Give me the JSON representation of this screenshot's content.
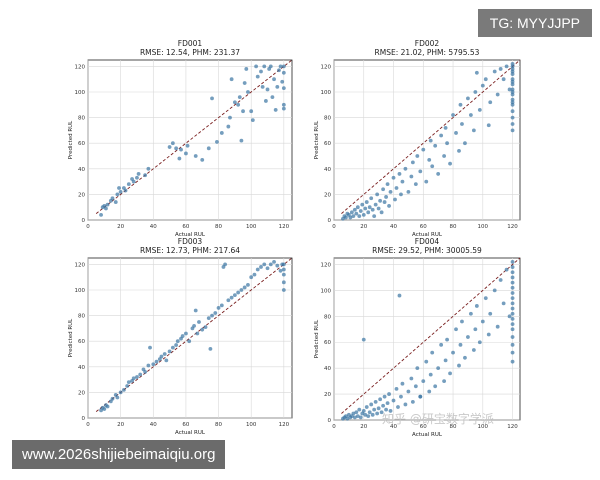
{
  "watermarks": {
    "top_right": "TG: MYYJJPP",
    "bottom_left": "www.2026shijiebeimaiqiu.org",
    "overlay": "知乎 @研宝数字学派"
  },
  "chart_data": [
    {
      "type": "scatter",
      "title": "FD001",
      "subtitle": "RMSE: 12.54, PHM: 231.37",
      "xlabel": "Actual RUL",
      "ylabel": "Predicted RUL",
      "xlim": [
        0,
        125
      ],
      "ylim": [
        0,
        125
      ],
      "xticks": [
        0,
        20,
        40,
        60,
        80,
        100,
        120
      ],
      "yticks": [
        0,
        20,
        40,
        60,
        80,
        100,
        120
      ],
      "grid": true,
      "reference_line": [
        [
          5,
          5
        ],
        [
          125,
          125
        ]
      ],
      "points": [
        [
          8,
          4
        ],
        [
          9,
          10
        ],
        [
          10,
          11
        ],
        [
          11,
          9
        ],
        [
          12,
          12
        ],
        [
          14,
          15
        ],
        [
          15,
          17
        ],
        [
          17,
          14
        ],
        [
          18,
          20
        ],
        [
          19,
          25
        ],
        [
          20,
          22
        ],
        [
          22,
          25
        ],
        [
          23,
          23
        ],
        [
          25,
          28
        ],
        [
          27,
          32
        ],
        [
          28,
          30
        ],
        [
          30,
          33
        ],
        [
          31,
          36
        ],
        [
          35,
          35
        ],
        [
          37,
          40
        ],
        [
          50,
          57
        ],
        [
          52,
          60
        ],
        [
          54,
          56
        ],
        [
          56,
          48
        ],
        [
          57,
          55
        ],
        [
          60,
          52
        ],
        [
          61,
          58
        ],
        [
          66,
          50
        ],
        [
          70,
          47
        ],
        [
          74,
          56
        ],
        [
          76,
          95
        ],
        [
          79,
          61
        ],
        [
          82,
          68
        ],
        [
          86,
          73
        ],
        [
          87,
          80
        ],
        [
          88,
          110
        ],
        [
          90,
          92
        ],
        [
          92,
          90
        ],
        [
          93,
          96
        ],
        [
          94,
          62
        ],
        [
          95,
          85
        ],
        [
          96,
          107
        ],
        [
          97,
          118
        ],
        [
          98,
          100
        ],
        [
          100,
          85
        ],
        [
          101,
          78
        ],
        [
          103,
          120
        ],
        [
          104,
          112
        ],
        [
          106,
          116
        ],
        [
          107,
          104
        ],
        [
          108,
          120
        ],
        [
          109,
          93
        ],
        [
          110,
          102
        ],
        [
          111,
          118
        ],
        [
          112,
          120
        ],
        [
          113,
          96
        ],
        [
          114,
          110
        ],
        [
          115,
          86
        ],
        [
          116,
          104
        ],
        [
          117,
          117
        ],
        [
          118,
          120
        ],
        [
          119,
          108
        ],
        [
          120,
          120
        ],
        [
          120,
          115
        ],
        [
          120,
          103
        ],
        [
          120,
          87
        ],
        [
          120,
          90
        ]
      ]
    },
    {
      "type": "scatter",
      "title": "FD002",
      "subtitle": "RMSE: 21.02, PHM: 5795.53",
      "xlabel": "Actual RUL",
      "ylabel": "Predicted RUL",
      "xlim": [
        0,
        125
      ],
      "ylim": [
        0,
        125
      ],
      "xticks": [
        0,
        20,
        40,
        60,
        80,
        100,
        120
      ],
      "yticks": [
        0,
        20,
        40,
        60,
        80,
        100,
        120
      ],
      "grid": true,
      "reference_line": [
        [
          5,
          5
        ],
        [
          125,
          125
        ]
      ],
      "points": [
        [
          6,
          1
        ],
        [
          7,
          3
        ],
        [
          8,
          2
        ],
        [
          9,
          5
        ],
        [
          10,
          4
        ],
        [
          11,
          2
        ],
        [
          12,
          6
        ],
        [
          13,
          3
        ],
        [
          14,
          8
        ],
        [
          15,
          5
        ],
        [
          16,
          10
        ],
        [
          17,
          3
        ],
        [
          18,
          7
        ],
        [
          19,
          12
        ],
        [
          20,
          4
        ],
        [
          21,
          9
        ],
        [
          22,
          14
        ],
        [
          23,
          6
        ],
        [
          24,
          10
        ],
        [
          25,
          17
        ],
        [
          26,
          8
        ],
        [
          27,
          3
        ],
        [
          28,
          12
        ],
        [
          29,
          20
        ],
        [
          30,
          9
        ],
        [
          31,
          15
        ],
        [
          32,
          6
        ],
        [
          33,
          24
        ],
        [
          34,
          14
        ],
        [
          35,
          18
        ],
        [
          36,
          28
        ],
        [
          37,
          11
        ],
        [
          38,
          22
        ],
        [
          40,
          33
        ],
        [
          41,
          16
        ],
        [
          42,
          25
        ],
        [
          44,
          36
        ],
        [
          45,
          20
        ],
        [
          46,
          30
        ],
        [
          48,
          40
        ],
        [
          50,
          22
        ],
        [
          52,
          34
        ],
        [
          53,
          45
        ],
        [
          55,
          28
        ],
        [
          56,
          50
        ],
        [
          58,
          38
        ],
        [
          60,
          55
        ],
        [
          62,
          30
        ],
        [
          64,
          47
        ],
        [
          65,
          62
        ],
        [
          66,
          42
        ],
        [
          68,
          58
        ],
        [
          70,
          36
        ],
        [
          72,
          66
        ],
        [
          74,
          50
        ],
        [
          75,
          72
        ],
        [
          76,
          60
        ],
        [
          78,
          44
        ],
        [
          80,
          82
        ],
        [
          82,
          68
        ],
        [
          84,
          54
        ],
        [
          85,
          90
        ],
        [
          86,
          75
        ],
        [
          88,
          60
        ],
        [
          90,
          95
        ],
        [
          92,
          82
        ],
        [
          94,
          70
        ],
        [
          95,
          100
        ],
        [
          96,
          115
        ],
        [
          98,
          86
        ],
        [
          100,
          105
        ],
        [
          102,
          110
        ],
        [
          104,
          74
        ],
        [
          105,
          92
        ],
        [
          108,
          116
        ],
        [
          110,
          98
        ],
        [
          112,
          118
        ],
        [
          114,
          110
        ],
        [
          116,
          120
        ],
        [
          118,
          102
        ],
        [
          120,
          122
        ],
        [
          120,
          118
        ],
        [
          120,
          114
        ],
        [
          120,
          110
        ],
        [
          120,
          106
        ],
        [
          120,
          102
        ],
        [
          120,
          98
        ],
        [
          120,
          94
        ],
        [
          120,
          90
        ],
        [
          120,
          85
        ],
        [
          120,
          80
        ],
        [
          120,
          75
        ],
        [
          120,
          70
        ],
        [
          120,
          120
        ],
        [
          120,
          116
        ],
        [
          120,
          108
        ],
        [
          120,
          100
        ],
        [
          120,
          92
        ]
      ]
    },
    {
      "type": "scatter",
      "title": "FD003",
      "subtitle": "RMSE: 12.73, PHM: 217.64",
      "xlabel": "Actual RUL",
      "ylabel": "Predicted RUL",
      "xlim": [
        0,
        125
      ],
      "ylim": [
        0,
        125
      ],
      "xticks": [
        0,
        20,
        40,
        60,
        80,
        100,
        120
      ],
      "yticks": [
        0,
        20,
        40,
        60,
        80,
        100,
        120
      ],
      "grid": true,
      "reference_line": [
        [
          5,
          5
        ],
        [
          125,
          125
        ]
      ],
      "points": [
        [
          8,
          6
        ],
        [
          9,
          8
        ],
        [
          10,
          7
        ],
        [
          11,
          10
        ],
        [
          12,
          9
        ],
        [
          14,
          13
        ],
        [
          15,
          15
        ],
        [
          17,
          18
        ],
        [
          18,
          16
        ],
        [
          20,
          20
        ],
        [
          22,
          22
        ],
        [
          24,
          25
        ],
        [
          25,
          28
        ],
        [
          27,
          29
        ],
        [
          28,
          31
        ],
        [
          30,
          32
        ],
        [
          32,
          34
        ],
        [
          34,
          38
        ],
        [
          35,
          36
        ],
        [
          37,
          41
        ],
        [
          38,
          55
        ],
        [
          40,
          42
        ],
        [
          42,
          44
        ],
        [
          44,
          46
        ],
        [
          45,
          48
        ],
        [
          47,
          50
        ],
        [
          48,
          45
        ],
        [
          50,
          52
        ],
        [
          52,
          55
        ],
        [
          54,
          57
        ],
        [
          55,
          60
        ],
        [
          57,
          62
        ],
        [
          58,
          64
        ],
        [
          60,
          66
        ],
        [
          62,
          60
        ],
        [
          64,
          70
        ],
        [
          65,
          72
        ],
        [
          66,
          84
        ],
        [
          67,
          66
        ],
        [
          68,
          75
        ],
        [
          70,
          69
        ],
        [
          72,
          71
        ],
        [
          74,
          78
        ],
        [
          75,
          54
        ],
        [
          76,
          80
        ],
        [
          78,
          82
        ],
        [
          80,
          86
        ],
        [
          82,
          88
        ],
        [
          83,
          118
        ],
        [
          84,
          120
        ],
        [
          86,
          92
        ],
        [
          88,
          94
        ],
        [
          90,
          96
        ],
        [
          92,
          98
        ],
        [
          94,
          100
        ],
        [
          96,
          102
        ],
        [
          98,
          104
        ],
        [
          100,
          110
        ],
        [
          102,
          112
        ],
        [
          104,
          116
        ],
        [
          106,
          118
        ],
        [
          108,
          120
        ],
        [
          110,
          117
        ],
        [
          112,
          120
        ],
        [
          114,
          122
        ],
        [
          116,
          119
        ],
        [
          118,
          115
        ],
        [
          119,
          120
        ],
        [
          120,
          120
        ],
        [
          120,
          116
        ],
        [
          120,
          112
        ],
        [
          120,
          106
        ],
        [
          120,
          100
        ]
      ]
    },
    {
      "type": "scatter",
      "title": "FD004",
      "subtitle": "RMSE: 29.52, PHM: 30005.59",
      "xlabel": "Actual RUL",
      "ylabel": "Predicted RUL",
      "xlim": [
        0,
        125
      ],
      "ylim": [
        0,
        125
      ],
      "xticks": [
        0,
        20,
        40,
        60,
        80,
        100,
        120
      ],
      "yticks": [
        0,
        20,
        40,
        60,
        80,
        100,
        120
      ],
      "grid": true,
      "reference_line": [
        [
          5,
          5
        ],
        [
          125,
          125
        ]
      ],
      "points": [
        [
          6,
          1
        ],
        [
          7,
          2
        ],
        [
          8,
          3
        ],
        [
          9,
          1
        ],
        [
          10,
          4
        ],
        [
          11,
          2
        ],
        [
          12,
          3
        ],
        [
          13,
          5
        ],
        [
          14,
          2
        ],
        [
          15,
          6
        ],
        [
          16,
          3
        ],
        [
          17,
          8
        ],
        [
          18,
          2
        ],
        [
          19,
          5
        ],
        [
          20,
          7
        ],
        [
          21,
          4
        ],
        [
          22,
          10
        ],
        [
          23,
          3
        ],
        [
          24,
          6
        ],
        [
          25,
          12
        ],
        [
          26,
          4
        ],
        [
          27,
          8
        ],
        [
          28,
          14
        ],
        [
          29,
          5
        ],
        [
          30,
          9
        ],
        [
          31,
          16
        ],
        [
          32,
          6
        ],
        [
          33,
          11
        ],
        [
          34,
          18
        ],
        [
          35,
          8
        ],
        [
          36,
          13
        ],
        [
          37,
          20
        ],
        [
          38,
          7
        ],
        [
          40,
          15
        ],
        [
          42,
          24
        ],
        [
          43,
          10
        ],
        [
          44,
          96
        ],
        [
          45,
          18
        ],
        [
          46,
          28
        ],
        [
          48,
          12
        ],
        [
          50,
          22
        ],
        [
          52,
          32
        ],
        [
          53,
          14
        ],
        [
          55,
          26
        ],
        [
          56,
          40
        ],
        [
          58,
          18
        ],
        [
          60,
          30
        ],
        [
          62,
          45
        ],
        [
          64,
          22
        ],
        [
          65,
          35
        ],
        [
          66,
          52
        ],
        [
          68,
          26
        ],
        [
          70,
          40
        ],
        [
          72,
          58
        ],
        [
          74,
          30
        ],
        [
          75,
          46
        ],
        [
          76,
          62
        ],
        [
          78,
          36
        ],
        [
          80,
          52
        ],
        [
          82,
          70
        ],
        [
          84,
          42
        ],
        [
          85,
          58
        ],
        [
          86,
          76
        ],
        [
          88,
          48
        ],
        [
          90,
          64
        ],
        [
          92,
          82
        ],
        [
          94,
          54
        ],
        [
          95,
          70
        ],
        [
          96,
          88
        ],
        [
          98,
          60
        ],
        [
          100,
          76
        ],
        [
          102,
          94
        ],
        [
          104,
          66
        ],
        [
          105,
          82
        ],
        [
          108,
          100
        ],
        [
          110,
          72
        ],
        [
          112,
          108
        ],
        [
          114,
          90
        ],
        [
          116,
          116
        ],
        [
          118,
          80
        ],
        [
          120,
          122
        ],
        [
          120,
          118
        ],
        [
          120,
          114
        ],
        [
          120,
          110
        ],
        [
          120,
          106
        ],
        [
          120,
          102
        ],
        [
          120,
          98
        ],
        [
          120,
          94
        ],
        [
          120,
          90
        ],
        [
          120,
          86
        ],
        [
          120,
          82
        ],
        [
          120,
          78
        ],
        [
          120,
          74
        ],
        [
          120,
          70
        ],
        [
          120,
          64
        ],
        [
          120,
          58
        ],
        [
          120,
          52
        ],
        [
          120,
          45
        ],
        [
          20,
          62
        ],
        [
          58,
          18
        ]
      ]
    }
  ]
}
